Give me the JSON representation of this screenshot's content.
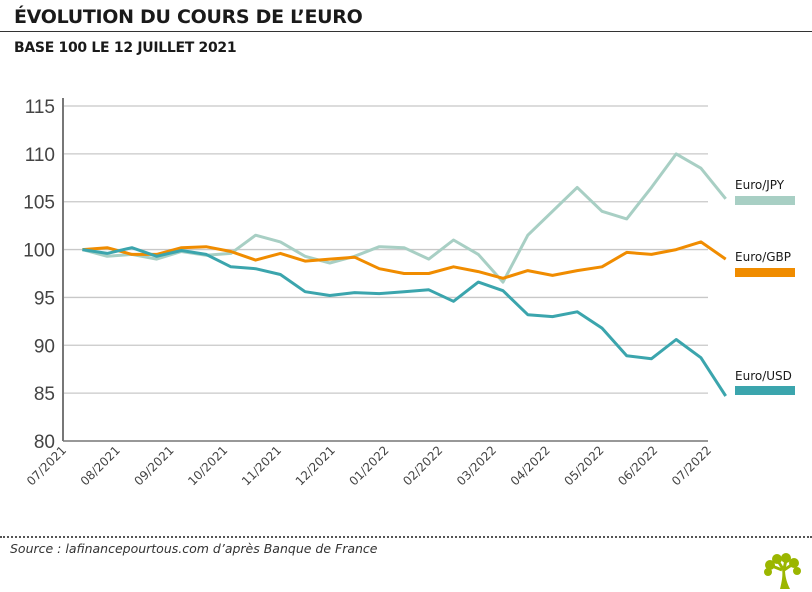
{
  "title": "ÉVOLUTION DU COURS DE L’EURO",
  "subtitle": "BASE 100 LE 12 JUILLET 2021",
  "source": "Source : lafinancepourtous.com d’après Banque de France",
  "chart_data": {
    "type": "line",
    "title": "ÉVOLUTION DU COURS DE L’EURO",
    "subtitle": "BASE 100 LE 12 JUILLET 2021",
    "xlabel": "",
    "ylabel": "",
    "ylim": [
      80,
      115
    ],
    "yticks": [
      80,
      85,
      90,
      95,
      100,
      105,
      110,
      115
    ],
    "xlim": [
      "2021-07-01",
      "2022-07-01"
    ],
    "xtick_labels": [
      "07/2021",
      "08/2021",
      "09/2021",
      "10/2021",
      "11/2021",
      "12/2021",
      "01/2022",
      "02/2022",
      "03/2022",
      "04/2022",
      "05/2022",
      "06/2022",
      "07/2022"
    ],
    "grid": "horizontal",
    "legend_placement": "right",
    "x": [
      "2021-07-12",
      "2021-07-26",
      "2021-08-09",
      "2021-08-23",
      "2021-09-06",
      "2021-09-20",
      "2021-10-04",
      "2021-10-18",
      "2021-11-01",
      "2021-11-15",
      "2021-11-29",
      "2021-12-13",
      "2021-12-27",
      "2022-01-10",
      "2022-01-24",
      "2022-02-07",
      "2022-02-21",
      "2022-03-07",
      "2022-03-21",
      "2022-04-04",
      "2022-04-18",
      "2022-05-02",
      "2022-05-16",
      "2022-05-30",
      "2022-06-13",
      "2022-06-27",
      "2022-07-11"
    ],
    "series": [
      {
        "name": "Euro/JPY",
        "color": "#a8cfc4",
        "values": [
          100,
          99.3,
          99.5,
          99.0,
          99.8,
          99.4,
          99.6,
          101.5,
          100.8,
          99.3,
          98.6,
          99.3,
          100.3,
          100.2,
          99.0,
          101.0,
          99.5,
          96.6,
          101.5,
          104.0,
          106.5,
          104.0,
          103.2,
          106.5,
          110.0,
          108.5,
          105.3
        ]
      },
      {
        "name": "Euro/GBP",
        "color": "#f08c00",
        "values": [
          100,
          100.2,
          99.5,
          99.5,
          100.2,
          100.3,
          99.8,
          98.9,
          99.6,
          98.8,
          99.0,
          99.2,
          98.0,
          97.5,
          97.5,
          98.2,
          97.7,
          97.0,
          97.8,
          97.3,
          97.8,
          98.2,
          99.7,
          99.5,
          100.0,
          100.8,
          99.0
        ]
      },
      {
        "name": "Euro/USD",
        "color": "#3ba5ad",
        "values": [
          100,
          99.6,
          100.2,
          99.3,
          99.9,
          99.5,
          98.2,
          98.0,
          97.4,
          95.6,
          95.2,
          95.5,
          95.4,
          95.6,
          95.8,
          94.6,
          96.6,
          95.7,
          93.2,
          93.0,
          93.5,
          91.8,
          88.9,
          88.6,
          90.6,
          88.7,
          84.7
        ]
      }
    ]
  }
}
